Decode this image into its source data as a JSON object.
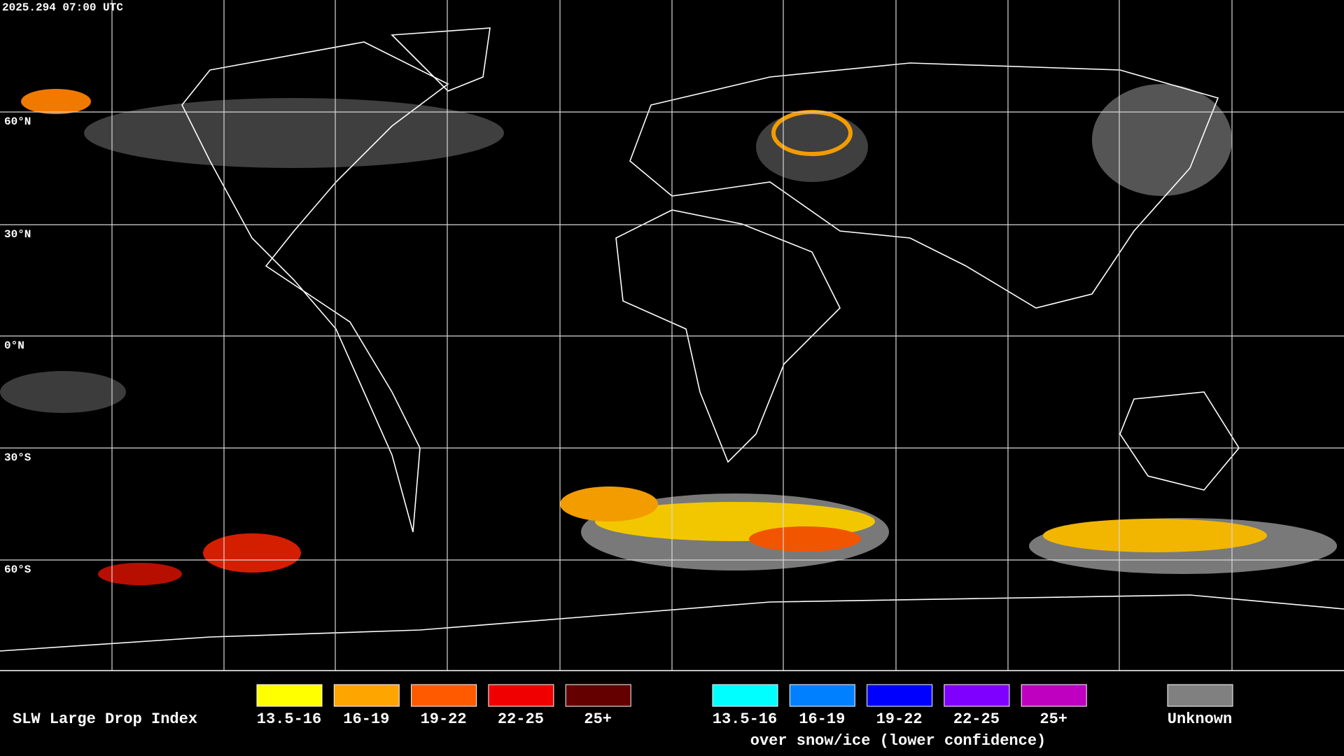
{
  "timestamp": "2025.294 07:00 UTC",
  "latitude_labels": [
    "60°N",
    "30°N",
    "0°N",
    "30°S",
    "60°S"
  ],
  "legend": {
    "title": "SLW Large Drop Index",
    "items": [
      {
        "label": "13.5-16",
        "color": "#ffff00"
      },
      {
        "label": "16-19",
        "color": "#ffa500"
      },
      {
        "label": "19-22",
        "color": "#ff5a00"
      },
      {
        "label": "22-25",
        "color": "#f00000"
      },
      {
        "label": "25+",
        "color": "#640000"
      }
    ],
    "snow_items": [
      {
        "label": "13.5-16",
        "color": "#00ffff"
      },
      {
        "label": "16-19",
        "color": "#0080ff"
      },
      {
        "label": "19-22",
        "color": "#0000ff"
      },
      {
        "label": "22-25",
        "color": "#8000ff"
      },
      {
        "label": "25+",
        "color": "#c000c0"
      }
    ],
    "snow_caption": "over snow/ice (lower confidence)",
    "unknown": {
      "label": "Unknown",
      "color": "#808080"
    }
  }
}
